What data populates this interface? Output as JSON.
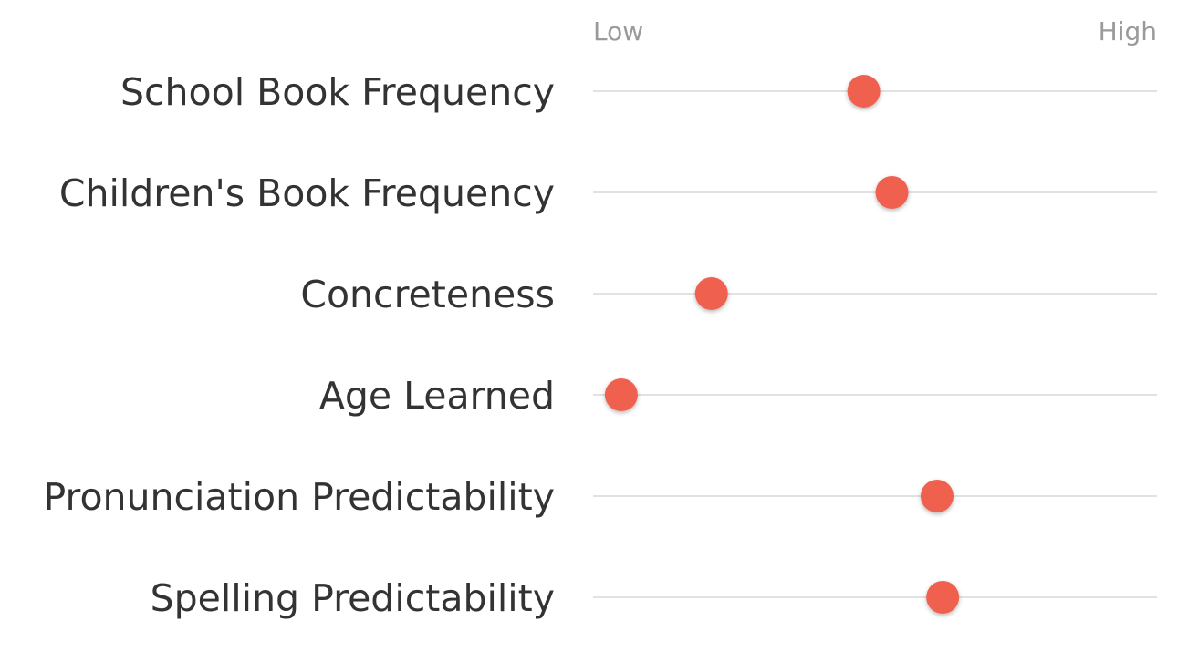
{
  "chart_data": {
    "type": "scatter",
    "scale_low_label": "Low",
    "scale_high_label": "High",
    "xlim": [
      0,
      1
    ],
    "categories": [
      "School Book Frequency",
      "Children's Book Frequency",
      "Concreteness",
      "Age Learned",
      "Pronunciation Predictability",
      "Spelling Predictability"
    ],
    "values": [
      0.48,
      0.53,
      0.21,
      0.05,
      0.61,
      0.62
    ],
    "grid": false,
    "legend": "none",
    "colors": {
      "point": "#f0604f",
      "track": "#d8d8d8",
      "label": "#333333",
      "axis_label": "#9a9a9a"
    }
  }
}
